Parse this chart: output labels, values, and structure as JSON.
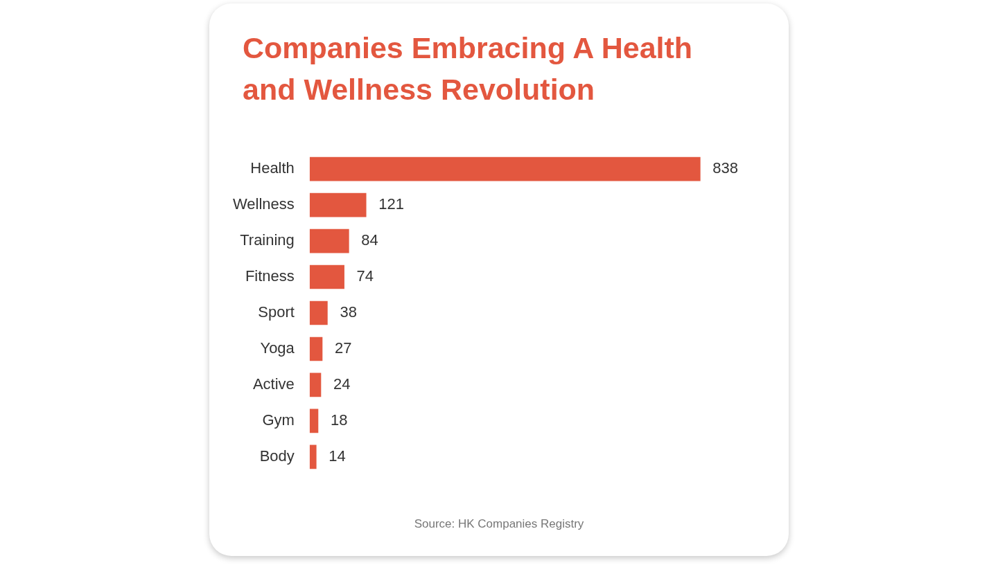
{
  "chart_data": {
    "type": "bar",
    "orientation": "horizontal",
    "title": "Companies Embracing A Health and Wellness Revolution",
    "categories": [
      "Health",
      "Wellness",
      "Training",
      "Fitness",
      "Sport",
      "Yoga",
      "Active",
      "Gym",
      "Body"
    ],
    "values": [
      838,
      121,
      84,
      74,
      38,
      27,
      24,
      18,
      14
    ],
    "color": "#e3573f",
    "data_labels": true,
    "annotations": [
      "Source: HK Companies Registry"
    ]
  }
}
